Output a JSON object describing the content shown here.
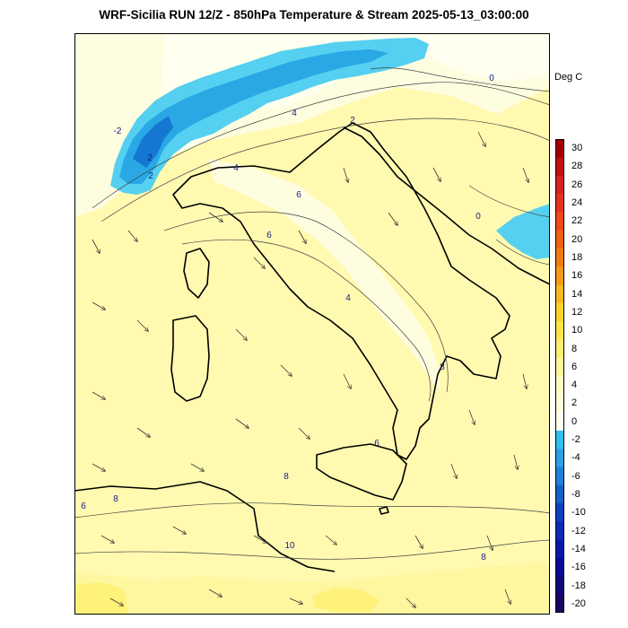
{
  "title": "WRF-Sicilia RUN 12/Z - 850hPa Temperature & Stream 2025-05-13_03:00:00",
  "units": "Deg C",
  "colors": {
    "warm_light": "#fffde0",
    "warm_mid": "#fffab0",
    "warm_strong": "#fff27a",
    "near_zero": "#fffff0",
    "cold_1": "#55d0f0",
    "cold_2": "#2aa8e6",
    "cold_3": "#1478d2",
    "coast": "#000000",
    "contour": "#404040"
  },
  "contour_labels": [
    {
      "text": "-2"
    },
    {
      "text": "2"
    },
    {
      "text": "2"
    },
    {
      "text": "0"
    },
    {
      "text": "0"
    },
    {
      "text": "4"
    },
    {
      "text": "4"
    },
    {
      "text": "6"
    },
    {
      "text": "6"
    },
    {
      "text": "4"
    },
    {
      "text": "8"
    },
    {
      "text": "6"
    },
    {
      "text": "8"
    },
    {
      "text": "8"
    },
    {
      "text": "6"
    },
    {
      "text": "10"
    },
    {
      "text": "8"
    },
    {
      "text": "2"
    }
  ],
  "colorbar": {
    "levels": [
      "30",
      "28",
      "26",
      "24",
      "22",
      "20",
      "18",
      "16",
      "14",
      "12",
      "10",
      "8",
      "6",
      "4",
      "2",
      "0",
      "-2",
      "-4",
      "-6",
      "-8",
      "-10",
      "-12",
      "-14",
      "-16",
      "-18",
      "-20"
    ],
    "colors": [
      "#a00000",
      "#c01010",
      "#d82020",
      "#e83020",
      "#f04818",
      "#f06010",
      "#f07c10",
      "#f59a18",
      "#f8b820",
      "#fbd42a",
      "#fde448",
      "#fdee70",
      "#fef59a",
      "#fffabe",
      "#fffcd8",
      "#fffff0",
      "#30c0f0",
      "#2aa0e6",
      "#1e80d8",
      "#1660c8",
      "#1040c0",
      "#0c2ab4",
      "#0818a8",
      "#0a0c96",
      "#100878",
      "#180660"
    ]
  }
}
